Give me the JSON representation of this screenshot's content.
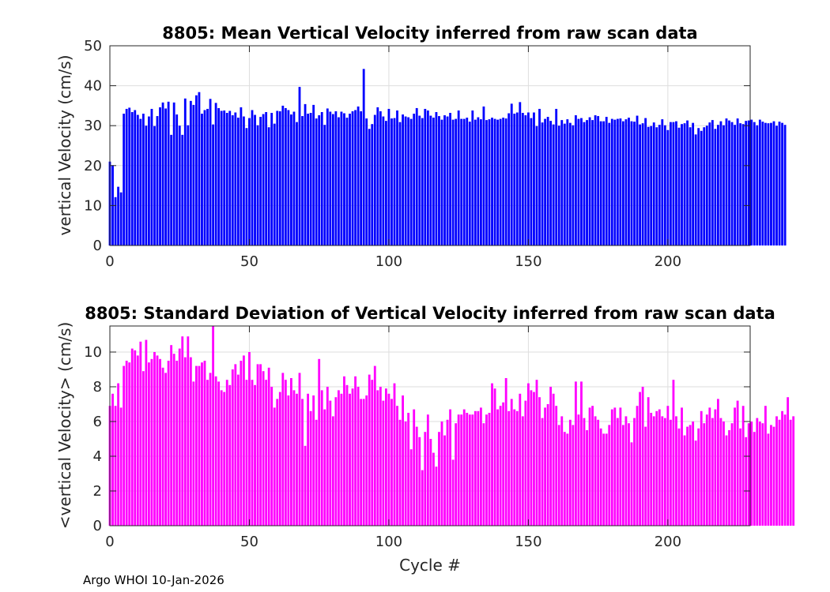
{
  "footer": "Argo WHOI 10-Jan-2026",
  "chart_data": [
    {
      "type": "bar",
      "title": "8805: Mean Vertical Velocity inferred from raw scan data",
      "xlabel": "",
      "ylabel": "vertical Velocity (cm/s)",
      "xlim": [
        0,
        229.5
      ],
      "ylim": [
        0,
        50
      ],
      "xticks": [
        0,
        50,
        100,
        150,
        200
      ],
      "yticks": [
        0,
        10,
        20,
        30,
        40,
        50
      ],
      "color": "#0000ff",
      "x_start": 0,
      "values": [
        21.0,
        20.1,
        12.1,
        14.7,
        13.3,
        33.0,
        34.2,
        34.5,
        33.4,
        33.9,
        32.7,
        31.7,
        33.0,
        30.0,
        32.3,
        34.2,
        29.9,
        32.4,
        34.6,
        35.8,
        34.3,
        36.0,
        27.7,
        35.8,
        32.8,
        30.0,
        27.7,
        36.8,
        30.1,
        36.2,
        35.2,
        37.6,
        38.4,
        33.0,
        33.9,
        34.2,
        36.7,
        30.3,
        35.7,
        34.4,
        33.7,
        33.8,
        33.2,
        33.7,
        32.6,
        33.3,
        32.0,
        34.6,
        32.3,
        29.4,
        31.9,
        33.9,
        32.7,
        30.1,
        32.2,
        32.9,
        33.4,
        29.6,
        33.2,
        30.5,
        33.7,
        33.6,
        35.0,
        34.4,
        33.9,
        32.8,
        33.5,
        30.9,
        39.7,
        32.4,
        35.4,
        33.0,
        33.2,
        35.2,
        31.8,
        32.6,
        33.4,
        30.2,
        34.3,
        33.5,
        32.9,
        33.6,
        32.1,
        33.5,
        33.1,
        32.0,
        33.0,
        33.6,
        33.9,
        34.8,
        33.6,
        44.2,
        31.8,
        29.2,
        30.4,
        32.7,
        34.6,
        33.6,
        32.3,
        31.2,
        34.2,
        31.8,
        31.9,
        33.8,
        30.9,
        32.8,
        32.3,
        32.1,
        31.7,
        33.0,
        34.4,
        32.5,
        31.9,
        34.2,
        33.8,
        32.5,
        32.0,
        33.4,
        32.4,
        31.5,
        32.6,
        32.3,
        33.2,
        31.5,
        31.7,
        33.8,
        31.7,
        31.7,
        32.0,
        31.0,
        33.8,
        31.5,
        32.1,
        31.6,
        34.8,
        31.4,
        31.6,
        32.0,
        31.7,
        31.5,
        31.7,
        32.0,
        31.8,
        33.1,
        35.5,
        33.0,
        33.3,
        35.9,
        33.2,
        32.6,
        33.3,
        31.9,
        33.3,
        29.9,
        34.2,
        30.8,
        31.7,
        32.2,
        31.2,
        30.3,
        34.2,
        30.0,
        31.4,
        30.5,
        31.6,
        30.7,
        30.1,
        32.6,
        31.7,
        31.9,
        30.9,
        31.4,
        32.1,
        31.4,
        32.6,
        32.4,
        31.1,
        31.1,
        32.2,
        30.7,
        31.7,
        31.5,
        31.7,
        31.8,
        31.1,
        31.6,
        32.0,
        31.1,
        31.0,
        32.5,
        30.3,
        30.6,
        31.9,
        29.7,
        29.9,
        30.8,
        29.6,
        30.2,
        31.6,
        30.1,
        28.9,
        30.9,
        30.9,
        31.1,
        29.5,
        30.4,
        30.6,
        31.3,
        29.6,
        30.7,
        27.8,
        29.4,
        28.7,
        29.6,
        30.0,
        30.8,
        31.4,
        29.2,
        30.2,
        31.1,
        30.1,
        31.8,
        31.3,
        30.9,
        30.2,
        31.8,
        30.6,
        30.4,
        31.2,
        31.3,
        31.5,
        30.9,
        30.1,
        31.5,
        31.0,
        30.7,
        30.6,
        30.7,
        31.1,
        30.0,
        31.0,
        30.7,
        30.2
      ]
    },
    {
      "type": "bar",
      "title": "8805: Standard Deviation of Vertical Velocity inferred from raw scan data",
      "xlabel": "Cycle #",
      "ylabel": "<vertical Velocity> (cm/s)",
      "xlim": [
        0,
        229.5
      ],
      "ylim": [
        0,
        11.5
      ],
      "xticks": [
        0,
        50,
        100,
        150,
        200
      ],
      "yticks": [
        0,
        2,
        4,
        6,
        8,
        10
      ],
      "color": "#ff00ff",
      "x_start": 0,
      "values": [
        6.9,
        7.6,
        6.9,
        8.2,
        6.8,
        9.2,
        9.5,
        9.4,
        10.2,
        10.1,
        9.8,
        10.6,
        8.9,
        10.7,
        9.4,
        9.6,
        10.0,
        9.8,
        9.6,
        9.1,
        8.8,
        9.5,
        10.4,
        9.9,
        9.5,
        10.2,
        10.9,
        9.7,
        10.9,
        9.7,
        8.3,
        9.2,
        9.2,
        9.4,
        9.5,
        8.4,
        8.8,
        11.5,
        8.6,
        8.3,
        7.8,
        7.7,
        8.4,
        8.1,
        9.0,
        9.3,
        8.7,
        9.5,
        9.8,
        8.4,
        10.0,
        8.4,
        8.1,
        9.3,
        9.3,
        8.9,
        8.4,
        9.1,
        8.0,
        6.8,
        7.3,
        7.7,
        8.8,
        8.4,
        7.5,
        8.5,
        7.8,
        7.6,
        8.8,
        7.3,
        4.6,
        7.6,
        6.6,
        7.5,
        6.1,
        9.6,
        7.8,
        6.7,
        8.0,
        7.2,
        6.3,
        7.4,
        7.8,
        7.6,
        8.6,
        8.1,
        7.6,
        7.9,
        8.6,
        8.0,
        7.3,
        7.3,
        7.5,
        8.7,
        8.4,
        9.2,
        7.8,
        8.0,
        7.2,
        7.9,
        7.6,
        7.3,
        8.2,
        6.9,
        6.1,
        7.5,
        6.0,
        6.5,
        4.4,
        6.7,
        5.7,
        5.1,
        3.2,
        5.4,
        6.4,
        5.0,
        4.2,
        3.4,
        5.4,
        6.0,
        5.2,
        6.1,
        6.7,
        3.8,
        5.9,
        6.4,
        6.4,
        6.7,
        6.5,
        6.4,
        6.4,
        6.6,
        6.6,
        6.8,
        5.9,
        6.4,
        6.5,
        8.2,
        7.9,
        6.7,
        6.9,
        7.1,
        8.5,
        6.6,
        7.3,
        6.7,
        6.6,
        7.6,
        6.3,
        7.2,
        8.2,
        7.8,
        7.7,
        8.4,
        7.4,
        6.2,
        6.8,
        7.0,
        8.0,
        7.6,
        6.9,
        5.8,
        6.3,
        5.4,
        5.3,
        6.1,
        5.8,
        8.3,
        6.4,
        8.3,
        6.2,
        5.5,
        6.8,
        6.9,
        6.3,
        6.1,
        5.6,
        5.3,
        5.3,
        5.8,
        6.7,
        6.8,
        6.2,
        6.8,
        5.8,
        6.3,
        5.9,
        4.8,
        6.2,
        6.9,
        7.7,
        8.0,
        5.7,
        7.4,
        6.5,
        6.3,
        6.6,
        6.7,
        6.3,
        6.2,
        6.9,
        6.1,
        8.4,
        6.3,
        5.6,
        6.8,
        5.2,
        5.7,
        5.8,
        6.0,
        4.9,
        5.6,
        6.6,
        5.9,
        6.4,
        6.8,
        6.2,
        6.7,
        7.3,
        6.2,
        6.0,
        5.2,
        5.5,
        5.9,
        6.8,
        7.2,
        5.6,
        6.9,
        5.1,
        5.9,
        6.0,
        5.4,
        6.2,
        6.0,
        5.9,
        6.9,
        5.3,
        5.8,
        5.7,
        6.3,
        6.1,
        6.6,
        6.4,
        7.4,
        6.1,
        6.3
      ]
    }
  ]
}
